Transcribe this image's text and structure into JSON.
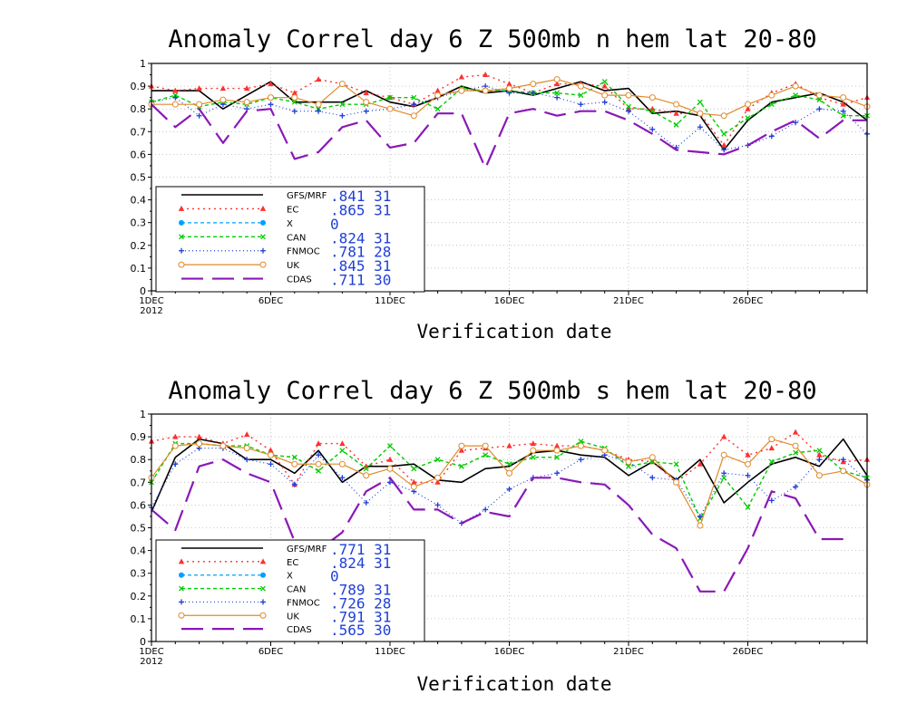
{
  "chart_data": [
    {
      "type": "line",
      "title": "Anomaly Correl  day 6  Z 500mb  n hem  lat 20-80",
      "xlabel": "Verification date",
      "ylabel": "",
      "ylim": [
        0,
        1
      ],
      "yticks": [
        "0",
        "0.1",
        "0.2",
        "0.3",
        "0.4",
        "0.5",
        "0.6",
        "0.7",
        "0.8",
        "0.9",
        "1"
      ],
      "xlim": [
        1,
        31
      ],
      "xticks": [
        {
          "x": 1,
          "label": "1DEC",
          "sub": "2012"
        },
        {
          "x": 6,
          "label": "6DEC",
          "sub": ""
        },
        {
          "x": 11,
          "label": "11DEC",
          "sub": ""
        },
        {
          "x": 16,
          "label": "16DEC",
          "sub": ""
        },
        {
          "x": 21,
          "label": "21DEC",
          "sub": ""
        },
        {
          "x": 26,
          "label": "26DEC",
          "sub": ""
        }
      ],
      "grid": true,
      "legend_position": "bottom-left",
      "series": [
        {
          "name": "GFS/MRF",
          "mean": ".841",
          "count": "31",
          "color": "#000000",
          "dash": "",
          "marker": "none",
          "width": 1.6,
          "x": [
            1,
            2,
            3,
            4,
            5,
            6,
            7,
            8,
            9,
            10,
            11,
            12,
            13,
            14,
            15,
            16,
            17,
            18,
            19,
            20,
            21,
            22,
            23,
            24,
            25,
            26,
            27,
            28,
            29,
            30,
            31
          ],
          "values": [
            0.88,
            0.88,
            0.88,
            0.8,
            0.86,
            0.92,
            0.83,
            0.83,
            0.83,
            0.88,
            0.83,
            0.81,
            0.85,
            0.9,
            0.87,
            0.88,
            0.86,
            0.89,
            0.92,
            0.88,
            0.89,
            0.78,
            0.79,
            0.77,
            0.62,
            0.75,
            0.83,
            0.85,
            0.87,
            0.83,
            0.75
          ]
        },
        {
          "name": "EC",
          "mean": ".865",
          "count": "31",
          "color": "#ff3030",
          "dash": "2 4",
          "marker": "triangle",
          "width": 1.4,
          "x": [
            1,
            2,
            3,
            4,
            5,
            6,
            7,
            8,
            9,
            10,
            11,
            12,
            13,
            14,
            15,
            16,
            17,
            18,
            19,
            20,
            21,
            22,
            23,
            24,
            25,
            26,
            27,
            28,
            29,
            30,
            31
          ],
          "values": [
            0.9,
            0.88,
            0.89,
            0.89,
            0.89,
            0.91,
            0.87,
            0.93,
            0.91,
            0.87,
            0.85,
            0.82,
            0.88,
            0.94,
            0.95,
            0.91,
            0.87,
            0.91,
            0.91,
            0.9,
            0.8,
            0.8,
            0.78,
            0.78,
            0.64,
            0.8,
            0.87,
            0.91,
            0.85,
            0.82,
            0.85
          ]
        },
        {
          "name": "X",
          "mean": "0",
          "count": "",
          "color": "#00a0ff",
          "dash": "4 3",
          "marker": "circle",
          "width": 1.2,
          "x": [],
          "values": []
        },
        {
          "name": "CAN",
          "mean": ".824",
          "count": "31",
          "color": "#00cc00",
          "dash": "4 3",
          "marker": "x",
          "width": 1.4,
          "x": [
            1,
            2,
            3,
            4,
            5,
            6,
            7,
            8,
            9,
            10,
            11,
            12,
            13,
            14,
            15,
            16,
            17,
            18,
            19,
            20,
            21,
            22,
            23,
            24,
            25,
            26,
            27,
            28,
            29,
            30,
            31
          ],
          "values": [
            0.83,
            0.86,
            0.81,
            0.83,
            0.82,
            0.85,
            0.83,
            0.8,
            0.82,
            0.82,
            0.85,
            0.85,
            0.8,
            0.89,
            0.88,
            0.88,
            0.87,
            0.87,
            0.86,
            0.92,
            0.81,
            0.79,
            0.73,
            0.83,
            0.69,
            0.76,
            0.82,
            0.86,
            0.84,
            0.77,
            0.77
          ]
        },
        {
          "name": "FNMOC",
          "mean": ".781",
          "count": "28",
          "color": "#1f3fd8",
          "dash": "1 3",
          "marker": "plus",
          "width": 1.2,
          "x": [
            1,
            2,
            3,
            4,
            5,
            6,
            7,
            8,
            9,
            10,
            11,
            12,
            13,
            14,
            15,
            16,
            17,
            18,
            19,
            20,
            21,
            22,
            23,
            24,
            25,
            26,
            27,
            28,
            29,
            30,
            31
          ],
          "values": [
            0.83,
            0.85,
            0.77,
            0.82,
            0.8,
            0.82,
            0.79,
            0.79,
            0.77,
            0.79,
            0.8,
            0.82,
            0.85,
            0.88,
            0.9,
            0.87,
            0.87,
            0.85,
            0.82,
            0.83,
            0.79,
            0.71,
            0.63,
            0.72,
            0.62,
            0.64,
            0.68,
            0.74,
            0.8,
            0.79,
            0.69
          ]
        },
        {
          "name": "UK",
          "mean": ".845",
          "count": "31",
          "color": "#e08a2a",
          "dash": "",
          "marker": "circle",
          "width": 1.2,
          "x": [
            1,
            2,
            3,
            4,
            5,
            6,
            7,
            8,
            9,
            10,
            11,
            12,
            13,
            14,
            15,
            16,
            17,
            18,
            19,
            20,
            21,
            22,
            23,
            24,
            25,
            26,
            27,
            28,
            29,
            30,
            31
          ],
          "values": [
            0.82,
            0.82,
            0.82,
            0.84,
            0.83,
            0.85,
            0.85,
            0.82,
            0.91,
            0.83,
            0.8,
            0.77,
            0.86,
            0.88,
            0.88,
            0.89,
            0.91,
            0.93,
            0.9,
            0.86,
            0.86,
            0.85,
            0.82,
            0.78,
            0.77,
            0.82,
            0.86,
            0.9,
            0.86,
            0.85,
            0.81
          ]
        },
        {
          "name": "CDAS",
          "mean": ".711",
          "count": "30",
          "color": "#8a18b8",
          "dash": "24 10",
          "marker": "none",
          "width": 2.2,
          "x": [
            1,
            2,
            3,
            4,
            5,
            6,
            7,
            8,
            9,
            10,
            11,
            12,
            13,
            14,
            15,
            16,
            17,
            18,
            19,
            20,
            21,
            22,
            23,
            24,
            25,
            26,
            27,
            28,
            29,
            30,
            31
          ],
          "values": [
            0.82,
            0.72,
            0.8,
            0.65,
            0.79,
            0.8,
            0.58,
            0.61,
            0.72,
            0.75,
            0.63,
            0.65,
            0.78,
            0.78,
            0.54,
            0.78,
            0.8,
            0.77,
            0.79,
            0.79,
            0.75,
            0.69,
            0.62,
            0.61,
            0.6,
            0.64,
            0.7,
            0.75,
            0.67,
            0.75,
            0.75
          ]
        }
      ]
    },
    {
      "type": "line",
      "title": "Anomaly Correl  day 6  Z 500mb  s hem  lat 20-80",
      "xlabel": "Verification date",
      "ylabel": "",
      "ylim": [
        0,
        1
      ],
      "yticks": [
        "0",
        "0.1",
        "0.2",
        "0.3",
        "0.4",
        "0.5",
        "0.6",
        "0.7",
        "0.8",
        "0.9",
        "1"
      ],
      "xlim": [
        1,
        31
      ],
      "xticks": [
        {
          "x": 1,
          "label": "1DEC",
          "sub": "2012"
        },
        {
          "x": 6,
          "label": "6DEC",
          "sub": ""
        },
        {
          "x": 11,
          "label": "11DEC",
          "sub": ""
        },
        {
          "x": 16,
          "label": "16DEC",
          "sub": ""
        },
        {
          "x": 21,
          "label": "21DEC",
          "sub": ""
        },
        {
          "x": 26,
          "label": "26DEC",
          "sub": ""
        }
      ],
      "grid": true,
      "legend_position": "bottom-left",
      "series": [
        {
          "name": "GFS/MRF",
          "mean": ".771",
          "count": "31",
          "color": "#000000",
          "dash": "",
          "marker": "none",
          "width": 1.6,
          "x": [
            1,
            2,
            3,
            4,
            5,
            6,
            7,
            8,
            9,
            10,
            11,
            12,
            13,
            14,
            15,
            16,
            17,
            18,
            19,
            20,
            21,
            22,
            23,
            24,
            25,
            26,
            27,
            28,
            29,
            30,
            31
          ],
          "values": [
            0.57,
            0.81,
            0.89,
            0.87,
            0.8,
            0.8,
            0.74,
            0.84,
            0.7,
            0.77,
            0.77,
            0.78,
            0.71,
            0.7,
            0.76,
            0.77,
            0.83,
            0.84,
            0.82,
            0.81,
            0.73,
            0.79,
            0.71,
            0.8,
            0.61,
            0.7,
            0.78,
            0.81,
            0.77,
            0.89,
            0.73
          ]
        },
        {
          "name": "EC",
          "mean": ".824",
          "count": "31",
          "color": "#ff3030",
          "dash": "2 4",
          "marker": "triangle",
          "width": 1.4,
          "x": [
            1,
            2,
            3,
            4,
            5,
            6,
            7,
            8,
            9,
            10,
            11,
            12,
            13,
            14,
            15,
            16,
            17,
            18,
            19,
            20,
            21,
            22,
            23,
            24,
            25,
            26,
            27,
            28,
            29,
            30,
            31
          ],
          "values": [
            0.88,
            0.9,
            0.9,
            0.87,
            0.91,
            0.84,
            0.69,
            0.87,
            0.87,
            0.77,
            0.8,
            0.7,
            0.7,
            0.84,
            0.85,
            0.86,
            0.87,
            0.86,
            0.86,
            0.84,
            0.8,
            0.79,
            0.7,
            0.78,
            0.9,
            0.82,
            0.85,
            0.92,
            0.82,
            0.79,
            0.8
          ]
        },
        {
          "name": "X",
          "mean": "0",
          "count": "",
          "color": "#00a0ff",
          "dash": "4 3",
          "marker": "circle",
          "width": 1.2,
          "x": [],
          "values": []
        },
        {
          "name": "CAN",
          "mean": ".789",
          "count": "31",
          "color": "#00cc00",
          "dash": "4 3",
          "marker": "x",
          "width": 1.4,
          "x": [
            1,
            2,
            3,
            4,
            5,
            6,
            7,
            8,
            9,
            10,
            11,
            12,
            13,
            14,
            15,
            16,
            17,
            18,
            19,
            20,
            21,
            22,
            23,
            24,
            25,
            26,
            27,
            28,
            29,
            30,
            31
          ],
          "values": [
            0.7,
            0.87,
            0.87,
            0.86,
            0.86,
            0.82,
            0.81,
            0.75,
            0.84,
            0.76,
            0.86,
            0.76,
            0.8,
            0.77,
            0.82,
            0.78,
            0.81,
            0.81,
            0.88,
            0.85,
            0.77,
            0.79,
            0.78,
            0.54,
            0.72,
            0.59,
            0.79,
            0.83,
            0.84,
            0.75,
            0.72
          ]
        },
        {
          "name": "FNMOC",
          "mean": ".726",
          "count": "28",
          "color": "#1f3fd8",
          "dash": "1 3",
          "marker": "plus",
          "width": 1.2,
          "x": [
            1,
            2,
            3,
            4,
            5,
            6,
            7,
            8,
            9,
            10,
            11,
            12,
            13,
            14,
            15,
            16,
            17,
            18,
            19,
            20,
            21,
            22,
            23,
            24,
            25,
            26,
            27,
            28,
            29,
            30,
            31
          ],
          "values": [
            0.59,
            0.78,
            0.85,
            0.85,
            0.8,
            0.78,
            0.69,
            0.82,
            0.72,
            0.61,
            0.7,
            0.66,
            0.6,
            0.52,
            0.58,
            0.67,
            0.72,
            0.74,
            0.8,
            0.82,
            0.79,
            0.72,
            0.71,
            0.55,
            0.74,
            0.73,
            0.62,
            0.68,
            0.8,
            0.8,
            0.71
          ]
        },
        {
          "name": "UK",
          "mean": ".791",
          "count": "31",
          "color": "#e08a2a",
          "dash": "",
          "marker": "circle",
          "width": 1.2,
          "x": [
            1,
            2,
            3,
            4,
            5,
            6,
            7,
            8,
            9,
            10,
            11,
            12,
            13,
            14,
            15,
            16,
            17,
            18,
            19,
            20,
            21,
            22,
            23,
            24,
            25,
            26,
            27,
            28,
            29,
            30,
            31
          ],
          "values": [
            0.72,
            0.86,
            0.87,
            0.86,
            0.85,
            0.82,
            0.78,
            0.78,
            0.78,
            0.73,
            0.76,
            0.68,
            0.72,
            0.86,
            0.86,
            0.74,
            0.84,
            0.84,
            0.86,
            0.84,
            0.79,
            0.81,
            0.7,
            0.51,
            0.82,
            0.78,
            0.89,
            0.86,
            0.73,
            0.75,
            0.69
          ]
        },
        {
          "name": "CDAS",
          "mean": ".565",
          "count": "30",
          "color": "#8a18b8",
          "dash": "24 10",
          "marker": "none",
          "width": 2.2,
          "x": [
            1,
            2,
            3,
            4,
            5,
            6,
            7,
            8,
            9,
            10,
            11,
            12,
            13,
            14,
            15,
            16,
            17,
            18,
            19,
            20,
            21,
            22,
            23,
            24,
            25,
            26,
            27,
            28,
            29,
            30
          ],
          "values": [
            0.58,
            0.49,
            0.77,
            0.8,
            0.74,
            0.7,
            0.44,
            0.4,
            0.48,
            0.66,
            0.72,
            0.58,
            0.58,
            0.52,
            0.57,
            0.55,
            0.72,
            0.72,
            0.7,
            0.69,
            0.6,
            0.47,
            0.41,
            0.22,
            0.22,
            0.41,
            0.66,
            0.63,
            0.45,
            0.45
          ]
        }
      ]
    }
  ]
}
